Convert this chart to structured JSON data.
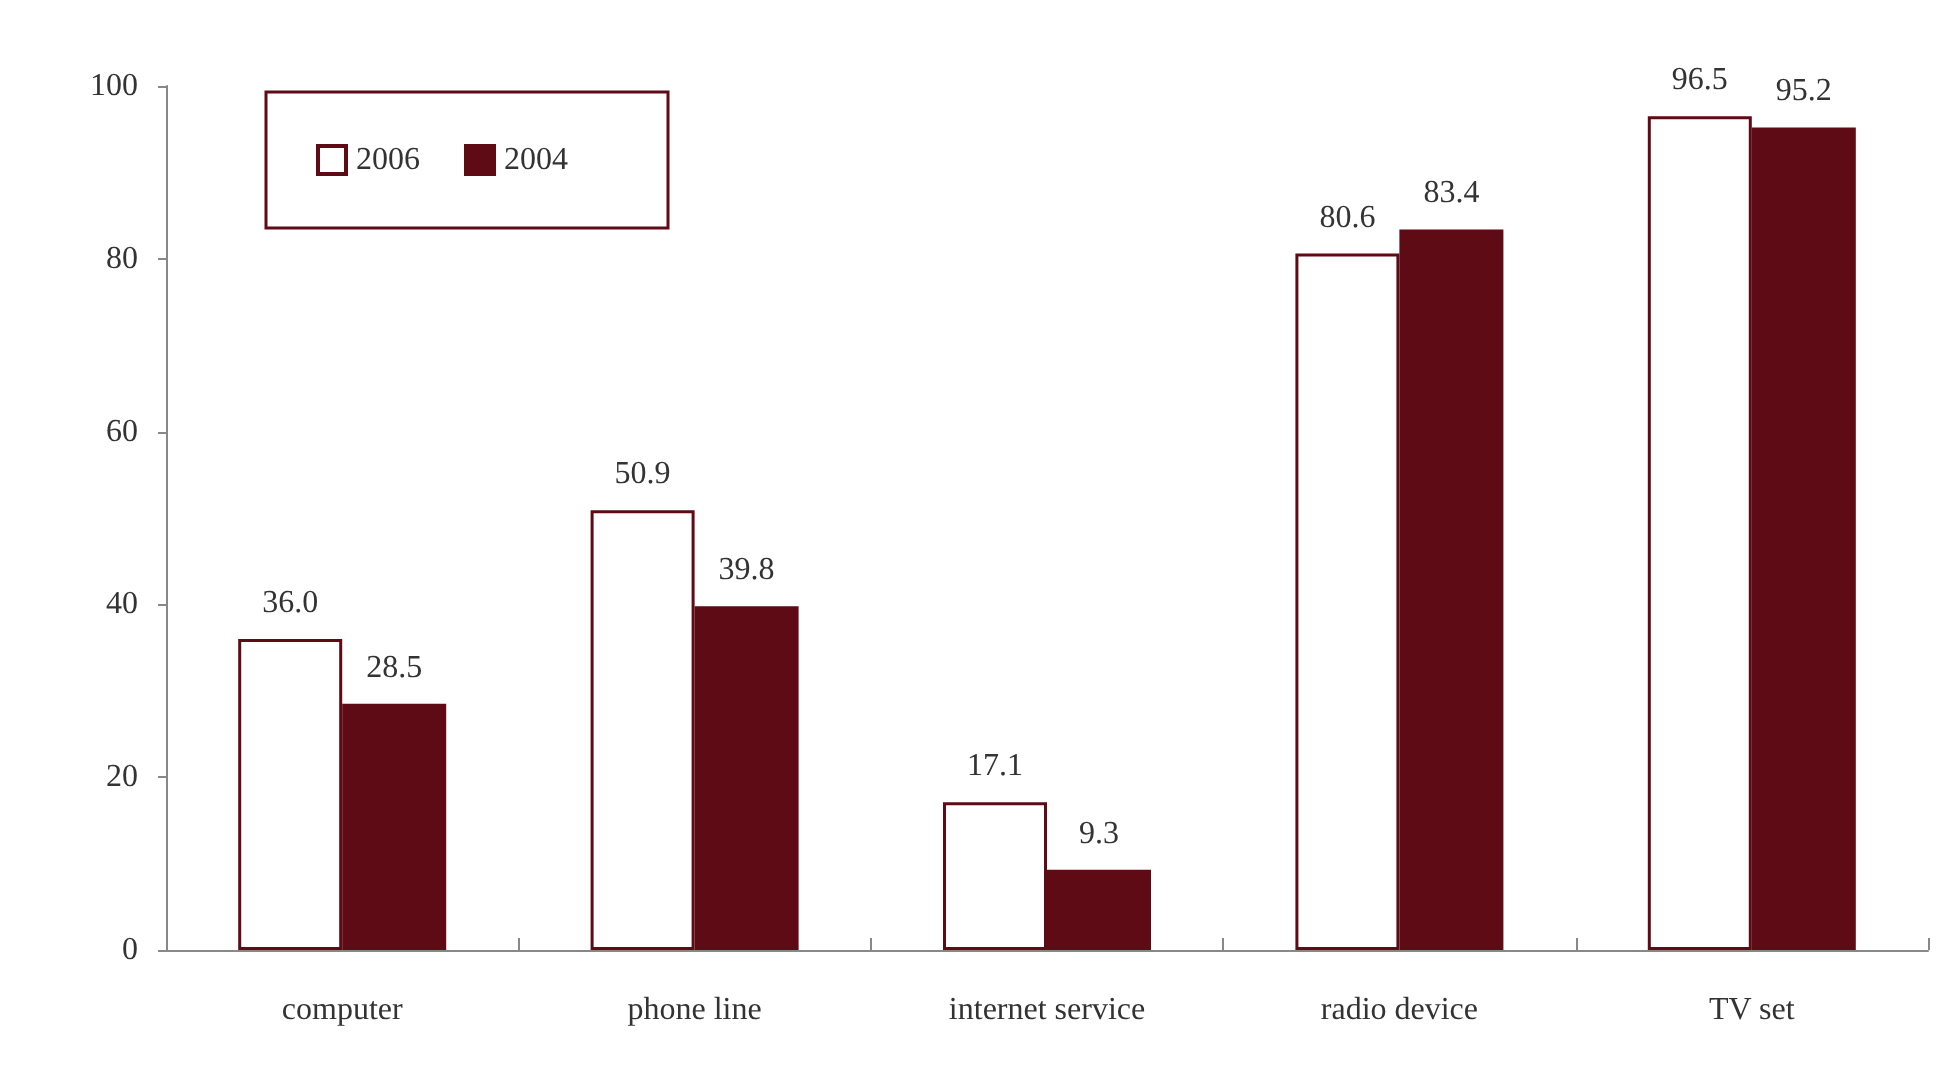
{
  "chart_data": {
    "type": "bar",
    "categories": [
      "computer",
      "phone line",
      "internet service",
      "radio device",
      "TV set"
    ],
    "series": [
      {
        "name": "2006",
        "color": "#ffffff",
        "values": [
          36.0,
          50.9,
          17.1,
          80.6,
          96.5
        ],
        "value_labels": [
          "36.0",
          "50.9",
          "17.1",
          "80.6",
          "96.5"
        ]
      },
      {
        "name": "2004",
        "color": "#5e0b16",
        "values": [
          28.5,
          39.8,
          9.3,
          83.4,
          95.2
        ],
        "value_labels": [
          "28.5",
          "39.8",
          "9.3",
          "83.4",
          "95.2"
        ]
      }
    ],
    "ylim": [
      0,
      100
    ],
    "yticks": [
      0,
      20,
      40,
      60,
      80,
      100
    ],
    "grid": false,
    "legend": "top left"
  }
}
